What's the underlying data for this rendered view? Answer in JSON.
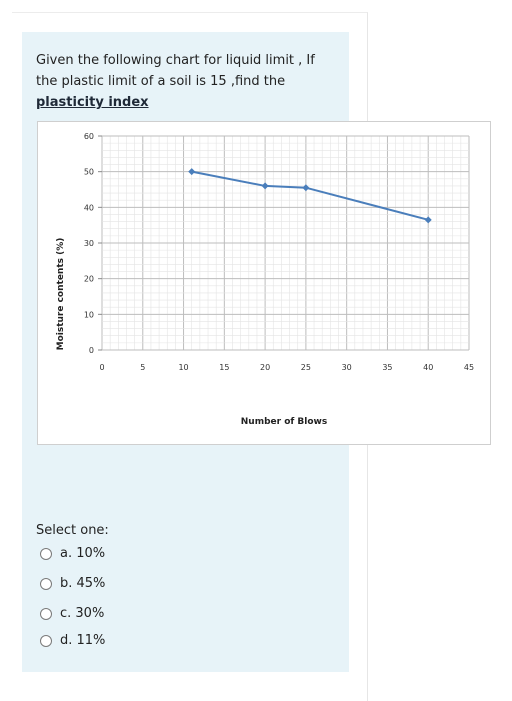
{
  "question": {
    "line1": "Given the following chart for liquid limit , If",
    "line2": "the plastic limit of a soil is 15 ,find the",
    "emphasis": "plasticity index"
  },
  "chart_data": {
    "type": "line",
    "title": "",
    "xlabel": "Number of Blows",
    "ylabel": "Moisture contents (%)",
    "xlim": [
      0,
      45
    ],
    "ylim": [
      0,
      60
    ],
    "x_ticks": [
      "0",
      "5",
      "10",
      "15",
      "20",
      "25",
      "30",
      "35",
      "40",
      "45"
    ],
    "y_ticks": [
      "0",
      "10",
      "20",
      "30",
      "40",
      "50",
      "60"
    ],
    "grid": true,
    "series": [
      {
        "x": [
          11,
          20,
          25,
          40
        ],
        "y": [
          50,
          46,
          45.5,
          36.5
        ]
      }
    ],
    "colors": {
      "line": "#4a7ebb",
      "grid": "#cfcfcf"
    }
  },
  "answers": {
    "prompt": "Select one:",
    "options": [
      "a. 10%",
      "b. 45%",
      "c. 30%",
      "d. 11%"
    ]
  }
}
